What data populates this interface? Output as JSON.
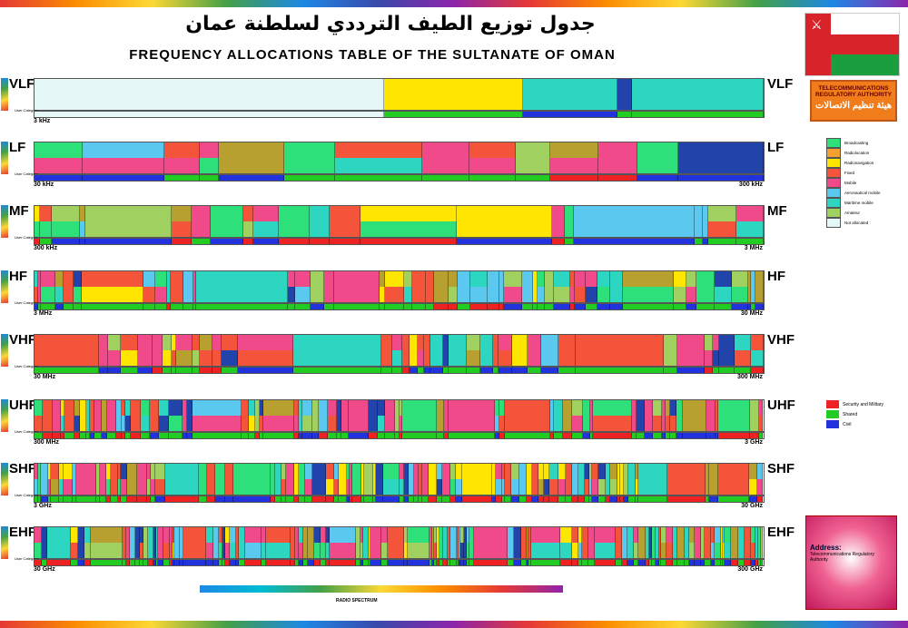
{
  "header": {
    "title_ar": "جدول توزيع الطيف الترددي لسلطنة عمان",
    "title_en": "FREQUENCY ALLOCATIONS TABLE OF THE SULTANATE OF OMAN"
  },
  "authority": {
    "name_en": "TELECOMMUNICATIONS REGULATORY AUTHORITY",
    "name_ar": "هيئة تنظيم الاتصالات"
  },
  "user_category_label": "User Category",
  "palette": {
    "not_allocated": "#e6f7f7",
    "broadcasting": "#2ee07a",
    "fixed": "#f4553a",
    "mobile": "#f04a8a",
    "satellite": "#ffe600",
    "aero": "#5bc8f0",
    "maritime": "#2cd6c0",
    "olive": "#b8a030",
    "amateur": "#a0d060",
    "navy": "#2244aa",
    "military": "#ee2222",
    "shared": "#22cc22",
    "civil": "#2233dd"
  },
  "bands": [
    {
      "name": "VLF",
      "start": "3 kHz",
      "end": ""
    },
    {
      "name": "LF",
      "start": "30 kHz",
      "end": "300 kHz"
    },
    {
      "name": "MF",
      "start": "300 kHz",
      "end": "3 MHz"
    },
    {
      "name": "HF",
      "start": "3 MHz",
      "end": "30 MHz"
    },
    {
      "name": "VHF",
      "start": "30 MHz",
      "end": "300 MHz"
    },
    {
      "name": "UHF",
      "start": "300 MHz",
      "end": "3 GHz"
    },
    {
      "name": "SHF",
      "start": "3 GHz",
      "end": "30 GHz"
    },
    {
      "name": "EHF",
      "start": "30 GHz",
      "end": "300 GHz"
    }
  ],
  "legend": {
    "items": [
      {
        "label": "Broadcasting",
        "color": "#2ee07a"
      },
      {
        "label": "Radiolocation",
        "color": "#f4a030"
      },
      {
        "label": "Radionavigation",
        "color": "#ffe600"
      },
      {
        "label": "Fixed",
        "color": "#f4553a"
      },
      {
        "label": "Mobile",
        "color": "#f04a8a"
      },
      {
        "label": "Aeronautical mobile",
        "color": "#5bc8f0"
      },
      {
        "label": "Maritime mobile",
        "color": "#2cd6c0"
      },
      {
        "label": "Amateur",
        "color": "#a0d060"
      },
      {
        "label": "Not allocated",
        "color": "#e6f7f7"
      }
    ]
  },
  "categories": [
    {
      "label": "Security and Military",
      "color": "#ee2222"
    },
    {
      "label": "Shared",
      "color": "#22cc22"
    },
    {
      "label": "Civil",
      "color": "#2233dd"
    }
  ],
  "address": {
    "title": "Address:",
    "org": "Telecommunications Regulatory Authority"
  },
  "spectrum_label": "RADIO SPECTRUM"
}
